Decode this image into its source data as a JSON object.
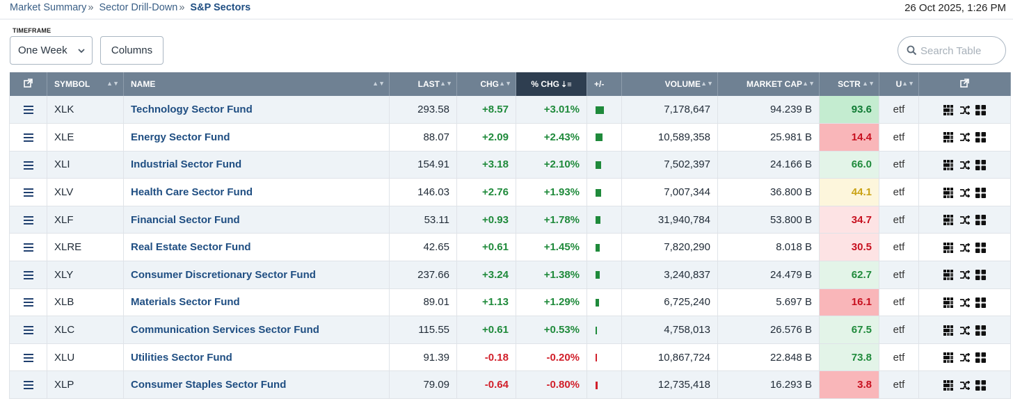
{
  "breadcrumb": {
    "items": [
      "Market Summary",
      "Sector Drill-Down"
    ],
    "separator": "»",
    "current": "S&P Sectors"
  },
  "datetime": "26 Oct 2025, 1:26 PM",
  "timeframe": {
    "label": "TIMEFRAME",
    "value": "One Week"
  },
  "columns_button": "Columns",
  "search": {
    "placeholder": "Search Table"
  },
  "colors": {
    "header": "#6f8193",
    "header_sorted": "#2e3e50",
    "positive": "#1f8a3b",
    "negative": "#d11f2a",
    "link": "#1f4e82"
  },
  "table": {
    "headers": {
      "symbol": "SYMBOL",
      "name": "NAME",
      "last": "LAST",
      "chg": "CHG",
      "pct_chg": "% CHG",
      "plusminus": "+/-",
      "volume": "VOLUME",
      "market_cap": "MARKET CAP",
      "sctr": "SCTR",
      "u": "U"
    },
    "sorted_column": "pct_chg",
    "rows": [
      {
        "symbol": "XLK",
        "name": "Technology Sector Fund",
        "last": "293.58",
        "chg": "+8.57",
        "pct": "+3.01%",
        "pct_value": 3.01,
        "volume": "7,178,647",
        "mcap": "94.239 B",
        "sctr": "93.6",
        "sctr_color": "#0f7a33",
        "sctr_bg": "#c4ecd0",
        "u": "etf"
      },
      {
        "symbol": "XLE",
        "name": "Energy Sector Fund",
        "last": "88.07",
        "chg": "+2.09",
        "pct": "+2.43%",
        "pct_value": 2.43,
        "volume": "10,589,358",
        "mcap": "25.981 B",
        "sctr": "14.4",
        "sctr_color": "#c7101f",
        "sctr_bg": "#f9b6b9",
        "u": "etf"
      },
      {
        "symbol": "XLI",
        "name": "Industrial Sector Fund",
        "last": "154.91",
        "chg": "+3.18",
        "pct": "+2.10%",
        "pct_value": 2.1,
        "volume": "7,502,397",
        "mcap": "24.166 B",
        "sctr": "66.0",
        "sctr_color": "#1f8a3b",
        "sctr_bg": "#e3f4e8",
        "u": "etf"
      },
      {
        "symbol": "XLV",
        "name": "Health Care Sector Fund",
        "last": "146.03",
        "chg": "+2.76",
        "pct": "+1.93%",
        "pct_value": 1.93,
        "volume": "7,007,344",
        "mcap": "36.800 B",
        "sctr": "44.1",
        "sctr_color": "#c9a214",
        "sctr_bg": "#fdf6dc",
        "u": "etf"
      },
      {
        "symbol": "XLF",
        "name": "Financial Sector Fund",
        "last": "53.11",
        "chg": "+0.93",
        "pct": "+1.78%",
        "pct_value": 1.78,
        "volume": "31,940,784",
        "mcap": "53.800 B",
        "sctr": "34.7",
        "sctr_color": "#c7101f",
        "sctr_bg": "#fde3e4",
        "u": "etf"
      },
      {
        "symbol": "XLRE",
        "name": "Real Estate Sector Fund",
        "last": "42.65",
        "chg": "+0.61",
        "pct": "+1.45%",
        "pct_value": 1.45,
        "volume": "7,820,290",
        "mcap": "8.018 B",
        "sctr": "30.5",
        "sctr_color": "#c7101f",
        "sctr_bg": "#fde3e4",
        "u": "etf"
      },
      {
        "symbol": "XLY",
        "name": "Consumer Discretionary Sector Fund",
        "last": "237.66",
        "chg": "+3.24",
        "pct": "+1.38%",
        "pct_value": 1.38,
        "volume": "3,240,837",
        "mcap": "24.479 B",
        "sctr": "62.7",
        "sctr_color": "#1f8a3b",
        "sctr_bg": "#e3f4e8",
        "u": "etf"
      },
      {
        "symbol": "XLB",
        "name": "Materials Sector Fund",
        "last": "89.01",
        "chg": "+1.13",
        "pct": "+1.29%",
        "pct_value": 1.29,
        "volume": "6,725,240",
        "mcap": "5.697 B",
        "sctr": "16.1",
        "sctr_color": "#c7101f",
        "sctr_bg": "#f9b6b9",
        "u": "etf"
      },
      {
        "symbol": "XLC",
        "name": "Communication Services Sector Fund",
        "last": "115.55",
        "chg": "+0.61",
        "pct": "+0.53%",
        "pct_value": 0.53,
        "volume": "4,758,013",
        "mcap": "26.576 B",
        "sctr": "67.5",
        "sctr_color": "#1f8a3b",
        "sctr_bg": "#e3f4e8",
        "u": "etf"
      },
      {
        "symbol": "XLU",
        "name": "Utilities Sector Fund",
        "last": "91.39",
        "chg": "-0.18",
        "pct": "-0.20%",
        "pct_value": -0.2,
        "volume": "10,867,724",
        "mcap": "22.848 B",
        "sctr": "73.8",
        "sctr_color": "#1f8a3b",
        "sctr_bg": "#e3f4e8",
        "u": "etf"
      },
      {
        "symbol": "XLP",
        "name": "Consumer Staples Sector Fund",
        "last": "79.09",
        "chg": "-0.64",
        "pct": "-0.80%",
        "pct_value": -0.8,
        "volume": "12,735,418",
        "mcap": "16.293 B",
        "sctr": "3.8",
        "sctr_color": "#c7101f",
        "sctr_bg": "#f9b6b9",
        "u": "etf"
      }
    ]
  }
}
